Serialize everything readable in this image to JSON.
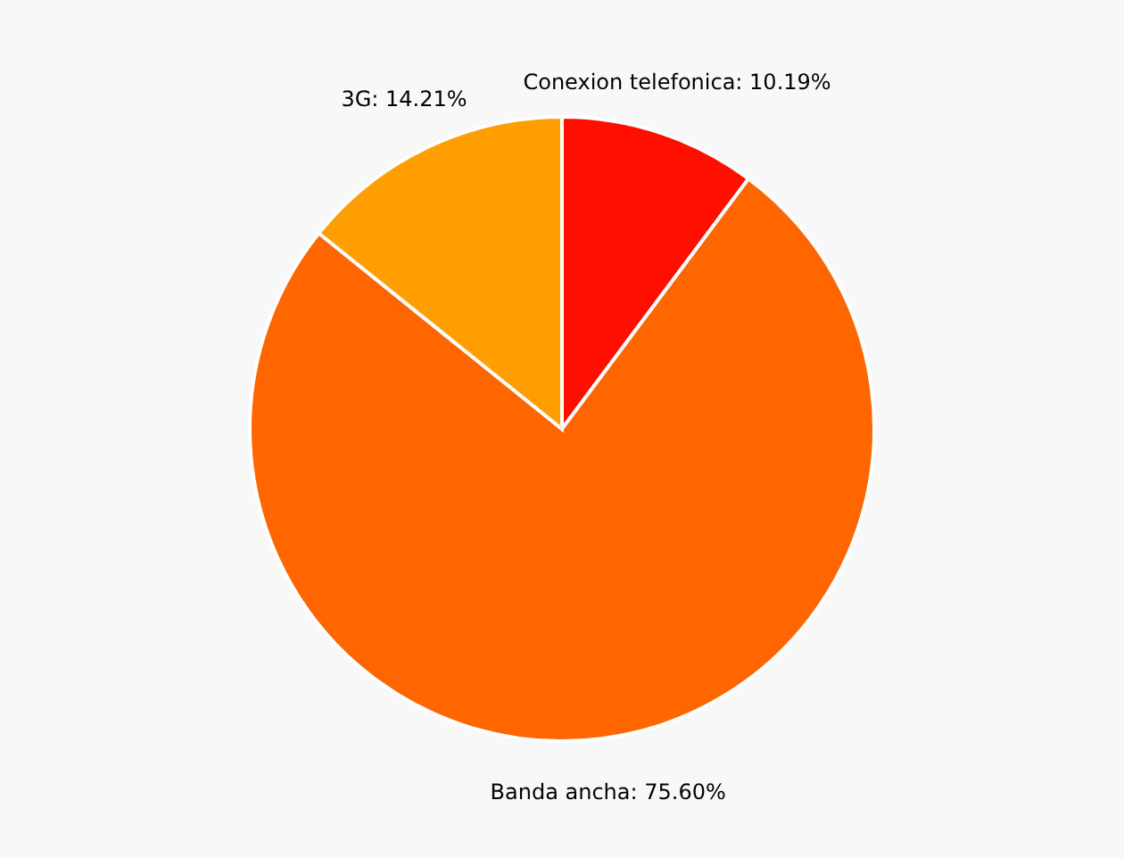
{
  "chart_data": {
    "type": "pie",
    "categories": [
      "Conexion telefonica",
      "Banda ancha",
      "3G"
    ],
    "values": [
      10.19,
      75.6,
      14.21
    ],
    "colors": [
      "#ff0f00",
      "#ff6600",
      "#ff9e01"
    ],
    "value_labels": [
      "10.19%",
      "75.60%",
      "14.21%"
    ],
    "legend": false
  }
}
